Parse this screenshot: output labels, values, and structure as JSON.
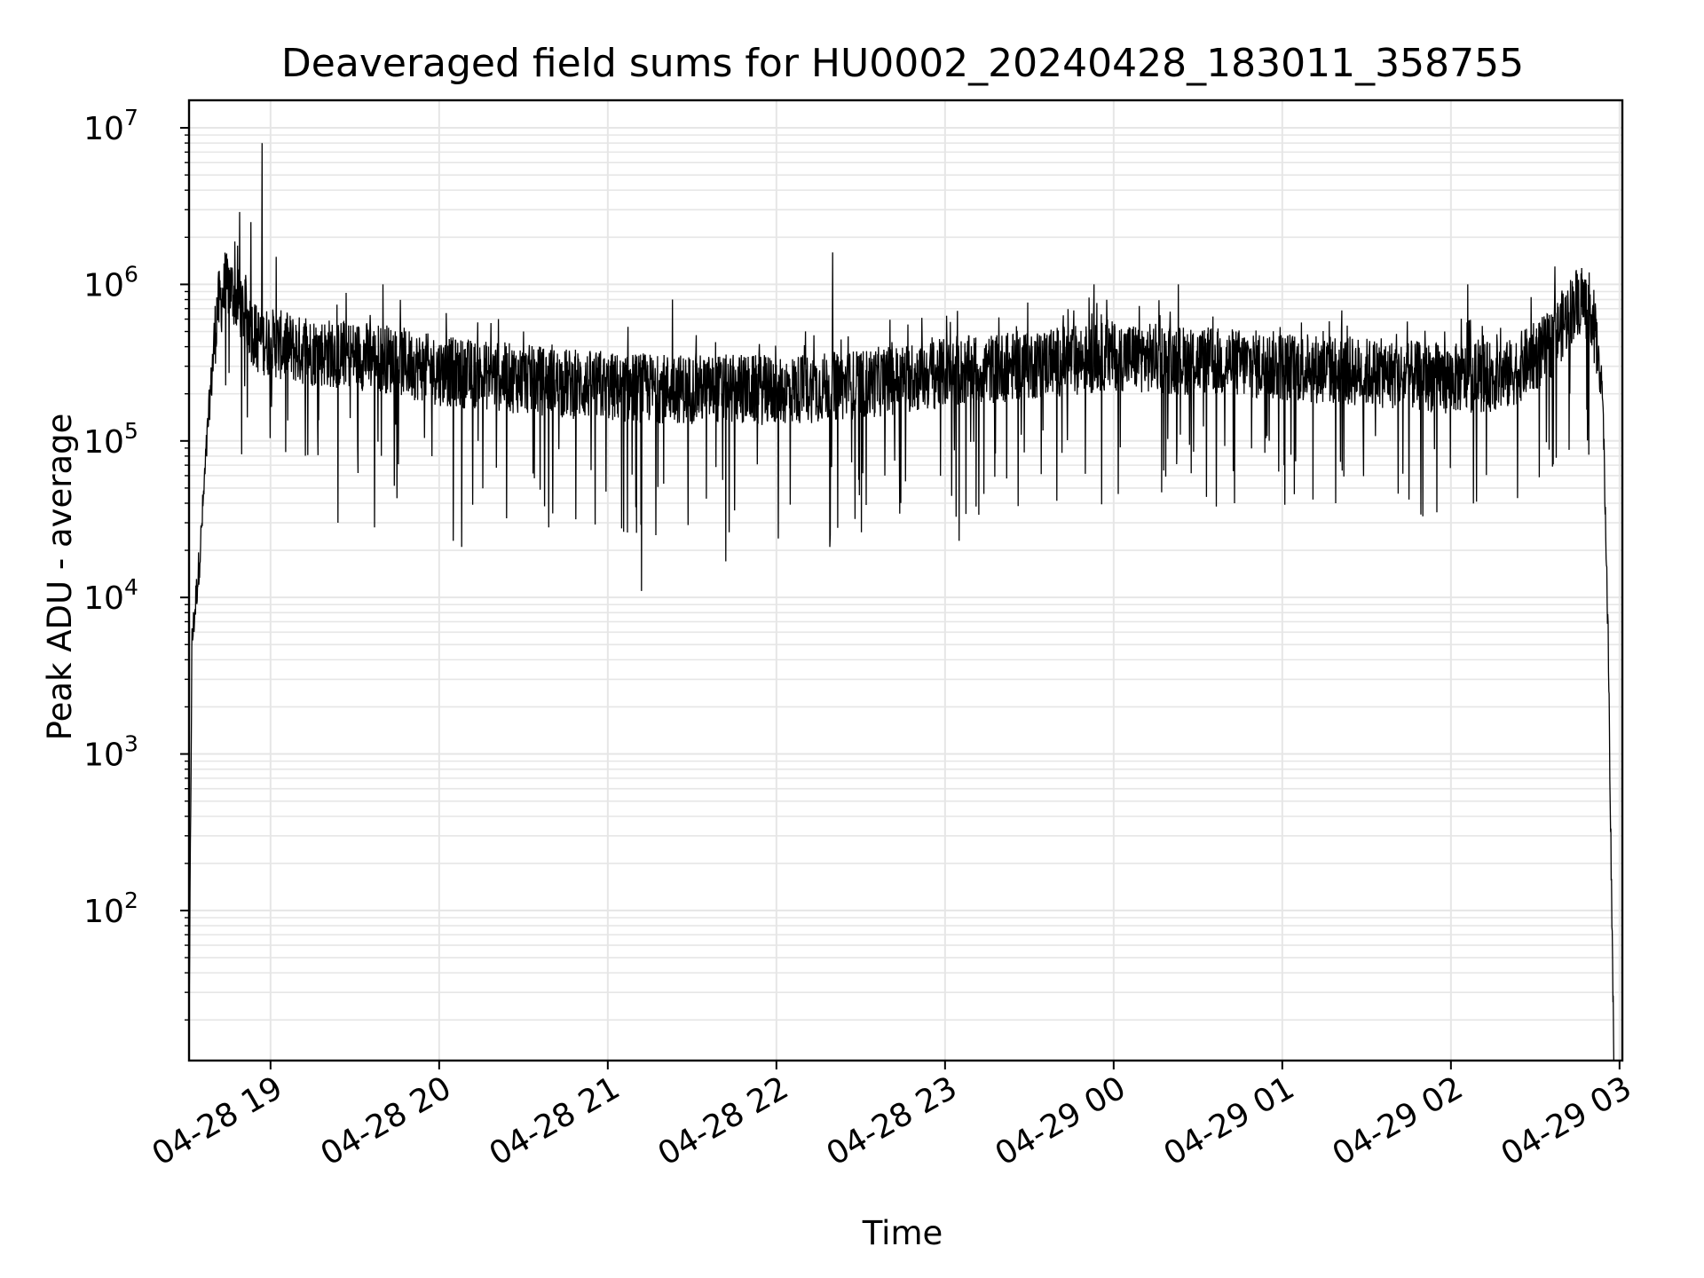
{
  "chart_data": {
    "type": "line",
    "title": "Deaveraged field sums for HU0002_20240428_183011_358755",
    "xlabel": "Time",
    "ylabel": "Peak ADU - average",
    "yscale": "log",
    "ylim": [
      11,
      15000000
    ],
    "xlim": [
      "2024-04-28 18:31:00",
      "2024-04-29 03:01:00"
    ],
    "grid": true,
    "line_color": "#000000",
    "grid_color": "#e6e6e6",
    "x_ticks": [
      {
        "label": "04-28 19",
        "t": "2024-04-28 19:00:00"
      },
      {
        "label": "04-28 20",
        "t": "2024-04-28 20:00:00"
      },
      {
        "label": "04-28 21",
        "t": "2024-04-28 21:00:00"
      },
      {
        "label": "04-28 22",
        "t": "2024-04-28 22:00:00"
      },
      {
        "label": "04-28 23",
        "t": "2024-04-28 23:00:00"
      },
      {
        "label": "04-29 00",
        "t": "2024-04-29 00:00:00"
      },
      {
        "label": "04-29 01",
        "t": "2024-04-29 01:00:00"
      },
      {
        "label": "04-29 02",
        "t": "2024-04-29 02:00:00"
      },
      {
        "label": "04-29 03",
        "t": "2024-04-29 03:00:00"
      }
    ],
    "y_ticks": [
      {
        "base": "10",
        "exp": "2",
        "value": 100
      },
      {
        "base": "10",
        "exp": "3",
        "value": 1000
      },
      {
        "base": "10",
        "exp": "4",
        "value": 10000
      },
      {
        "base": "10",
        "exp": "5",
        "value": 100000
      },
      {
        "base": "10",
        "exp": "6",
        "value": 1000000
      },
      {
        "base": "10",
        "exp": "7",
        "value": 10000000
      }
    ],
    "series": [
      {
        "trend": [
          [
            "2024-04-28 18:31:00",
            12
          ],
          [
            "2024-04-28 18:32:00",
            5000
          ],
          [
            "2024-04-28 18:35:00",
            20000
          ],
          [
            "2024-04-28 18:38:00",
            150000
          ],
          [
            "2024-04-28 18:41:00",
            700000
          ],
          [
            "2024-04-28 18:45:00",
            1000000
          ],
          [
            "2024-04-28 18:50:00",
            700000
          ],
          [
            "2024-04-28 18:55:00",
            450000
          ],
          [
            "2024-04-28 19:10:00",
            380000
          ],
          [
            "2024-04-28 19:40:00",
            340000
          ],
          [
            "2024-04-28 20:00:00",
            280000
          ],
          [
            "2024-04-28 21:00:00",
            220000
          ],
          [
            "2024-04-28 22:00:00",
            210000
          ],
          [
            "2024-04-28 22:30:00",
            230000
          ],
          [
            "2024-04-28 23:00:00",
            270000
          ],
          [
            "2024-04-29 00:00:00",
            350000
          ],
          [
            "2024-04-29 01:00:00",
            300000
          ],
          [
            "2024-04-29 02:00:00",
            250000
          ],
          [
            "2024-04-29 02:20:00",
            260000
          ],
          [
            "2024-04-29 02:35:00",
            400000
          ],
          [
            "2024-04-29 02:45:00",
            800000
          ],
          [
            "2024-04-29 02:50:00",
            700000
          ],
          [
            "2024-04-29 02:54:00",
            200000
          ],
          [
            "2024-04-29 02:56:00",
            5000
          ],
          [
            "2024-04-29 02:57:00",
            200
          ],
          [
            "2024-04-29 02:58:00",
            11
          ]
        ],
        "spikes_high": [
          [
            "2024-04-28 18:49:00",
            2900000
          ],
          [
            "2024-04-28 18:53:00",
            2500000
          ],
          [
            "2024-04-28 18:57:00",
            8000000
          ],
          [
            "2024-04-28 19:02:00",
            1500000
          ],
          [
            "2024-04-28 19:40:00",
            1000000
          ],
          [
            "2024-04-28 21:23:00",
            800000
          ],
          [
            "2024-04-28 22:20:00",
            1600000
          ],
          [
            "2024-04-28 23:53:00",
            1000000
          ],
          [
            "2024-04-29 00:23:00",
            1000000
          ],
          [
            "2024-04-29 02:06:00",
            1000000
          ],
          [
            "2024-04-29 02:37:00",
            1300000
          ]
        ],
        "spikes_low": [
          [
            "2024-04-28 19:24:00",
            30000
          ],
          [
            "2024-04-28 19:37:00",
            28000
          ],
          [
            "2024-04-28 20:05:00",
            23000
          ],
          [
            "2024-04-28 20:08:00",
            21000
          ],
          [
            "2024-04-28 20:39:00",
            28000
          ],
          [
            "2024-04-28 21:07:00",
            26000
          ],
          [
            "2024-04-28 21:12:00",
            11000
          ],
          [
            "2024-04-28 21:42:00",
            17000
          ],
          [
            "2024-04-28 22:19:00",
            21000
          ],
          [
            "2024-04-28 23:05:00",
            23000
          ],
          [
            "2024-04-29 00:43:00",
            40000
          ],
          [
            "2024-04-29 01:19:00",
            40000
          ],
          [
            "2024-04-29 01:50:00",
            33000
          ],
          [
            "2024-04-29 01:55:00",
            35000
          ]
        ]
      }
    ]
  }
}
